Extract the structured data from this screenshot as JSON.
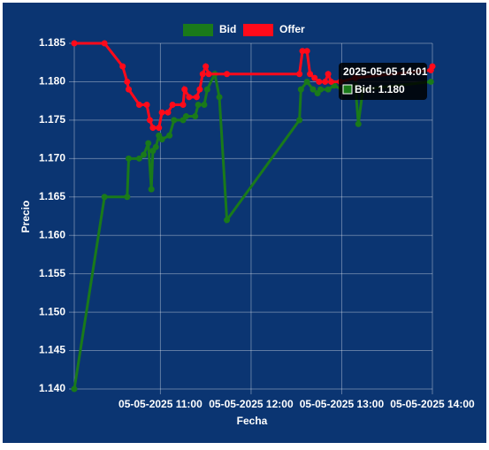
{
  "chart_data": {
    "type": "line",
    "xlabel": "Fecha",
    "ylabel": "Precio",
    "ylim": [
      1.14,
      1.185
    ],
    "yticks": [
      {
        "value": 1.14,
        "label": "1.140"
      },
      1.145,
      {
        "value": 1.15,
        "label": "1.150"
      },
      1.155,
      {
        "value": 1.16,
        "label": "1.160"
      },
      1.165,
      {
        "value": 1.17,
        "label": "1.170"
      },
      1.175,
      {
        "value": 1.18,
        "label": "1.180"
      },
      1.185
    ],
    "xlim": [
      "2025-05-05 10:03",
      "2025-05-05 14:00"
    ],
    "xticks": [
      {
        "value": "2025-05-05 11:00",
        "label": "05-05-2025 11:00"
      },
      {
        "value": "2025-05-05 12:00",
        "label": "05-05-2025 12:00"
      },
      {
        "value": "2025-05-05 13:00",
        "label": "05-05-2025 13:00"
      },
      {
        "value": "2025-05-05 14:00",
        "label": "05-05-2025 14:00"
      }
    ],
    "grid": true,
    "series": [
      {
        "name": "Bid",
        "color": "#1a7a1a",
        "x": [
          "2025-05-05 10:03",
          "2025-05-05 10:23",
          "2025-05-05 10:38",
          "2025-05-05 10:39",
          "2025-05-05 10:46",
          "2025-05-05 10:49",
          "2025-05-05 10:52",
          "2025-05-05 10:54",
          "2025-05-05 10:55",
          "2025-05-05 10:57",
          "2025-05-05 10:59",
          "2025-05-05 11:01",
          "2025-05-05 11:06",
          "2025-05-05 11:09",
          "2025-05-05 11:15",
          "2025-05-05 11:17",
          "2025-05-05 11:23",
          "2025-05-05 11:25",
          "2025-05-05 11:29",
          "2025-05-05 11:31",
          "2025-05-05 11:36",
          "2025-05-05 11:39",
          "2025-05-05 11:44",
          "2025-05-05 12:32",
          "2025-05-05 12:33",
          "2025-05-05 12:37",
          "2025-05-05 12:41",
          "2025-05-05 12:44",
          "2025-05-05 12:46",
          "2025-05-05 12:51",
          "2025-05-05 12:55",
          "2025-05-05 13:00",
          "2025-05-05 13:09",
          "2025-05-05 13:11",
          "2025-05-05 13:14",
          "2025-05-05 13:59"
        ],
        "values": [
          1.14,
          1.165,
          1.165,
          1.17,
          1.17,
          1.1705,
          1.172,
          1.166,
          1.171,
          1.1715,
          1.173,
          1.1725,
          1.173,
          1.175,
          1.175,
          1.1755,
          1.1755,
          1.177,
          1.177,
          1.179,
          1.181,
          1.178,
          1.162,
          1.175,
          1.179,
          1.18,
          1.179,
          1.1785,
          1.179,
          1.179,
          1.1795,
          1.179,
          1.1795,
          1.1745,
          1.179,
          1.18
        ]
      },
      {
        "name": "Offer",
        "color": "#ff0a1a",
        "x": [
          "2025-05-05 10:03",
          "2025-05-05 10:23",
          "2025-05-05 10:35",
          "2025-05-05 10:38",
          "2025-05-05 10:39",
          "2025-05-05 10:46",
          "2025-05-05 10:51",
          "2025-05-05 10:53",
          "2025-05-05 10:55",
          "2025-05-05 10:59",
          "2025-05-05 11:01",
          "2025-05-05 11:05",
          "2025-05-05 11:08",
          "2025-05-05 11:15",
          "2025-05-05 11:16",
          "2025-05-05 11:19",
          "2025-05-05 11:24",
          "2025-05-05 11:26",
          "2025-05-05 11:28",
          "2025-05-05 11:30",
          "2025-05-05 11:32",
          "2025-05-05 11:44",
          "2025-05-05 12:32",
          "2025-05-05 12:34",
          "2025-05-05 12:37",
          "2025-05-05 12:39",
          "2025-05-05 12:42",
          "2025-05-05 12:45",
          "2025-05-05 12:49",
          "2025-05-05 12:51",
          "2025-05-05 12:53",
          "2025-05-05 12:59",
          "2025-05-05 13:09",
          "2025-05-05 13:59",
          "2025-05-05 14:00"
        ],
        "values": [
          1.185,
          1.185,
          1.182,
          1.18,
          1.179,
          1.177,
          1.177,
          1.175,
          1.174,
          1.174,
          1.176,
          1.176,
          1.177,
          1.177,
          1.179,
          1.178,
          1.178,
          1.179,
          1.181,
          1.182,
          1.181,
          1.181,
          1.181,
          1.184,
          1.184,
          1.181,
          1.1805,
          1.18,
          1.18,
          1.181,
          1.18,
          1.18,
          1.1805,
          1.1815,
          1.182
        ]
      }
    ],
    "tooltip": {
      "title": "2025-05-05 14:01",
      "label": "Bid: 1.180"
    }
  }
}
